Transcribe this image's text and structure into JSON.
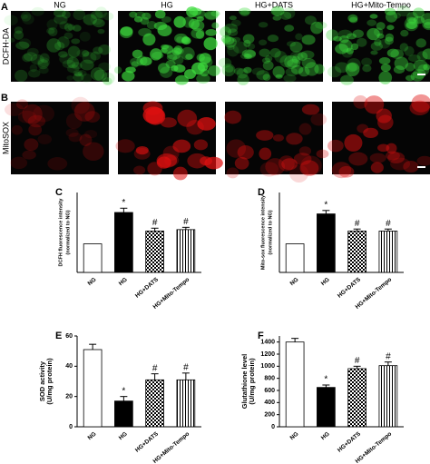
{
  "images": {
    "columns": [
      "NG",
      "HG",
      "HG+DATS",
      "HG+Mito-Tempo"
    ],
    "rows": [
      {
        "panel": "A",
        "stain": "DCFH-DA",
        "color": "#3ddc3d"
      },
      {
        "panel": "B",
        "stain": "MitoSOX",
        "color": "#e01010"
      }
    ]
  },
  "chart_data": [
    {
      "type": "bar",
      "panel": "C",
      "ylabel": [
        "DCFH fluorescence intensity",
        "(normalized to NG)"
      ],
      "categories": [
        "NG",
        "HG",
        "HG+DATS",
        "HG+Mito-Tempo"
      ],
      "values": [
        1,
        2.1,
        1.45,
        1.5
      ],
      "errors": [
        0,
        0.15,
        0.1,
        0.08
      ],
      "annotations": [
        null,
        "*",
        "#",
        "#"
      ],
      "patterns": [
        "white",
        "black",
        "checker",
        "vertical-stripes"
      ],
      "ylim": [
        0,
        2.8
      ]
    },
    {
      "type": "bar",
      "panel": "D",
      "ylabel": [
        "Mito-sox fluorescence intensity",
        "(normalized to NG)"
      ],
      "categories": [
        "NG",
        "HG",
        "HG+DATS",
        "HG+Mito-Tempo"
      ],
      "values": [
        1,
        2.05,
        1.45,
        1.45
      ],
      "errors": [
        0,
        0.12,
        0.07,
        0.07
      ],
      "annotations": [
        null,
        "*",
        "#",
        "#"
      ],
      "patterns": [
        "white",
        "black",
        "checker",
        "vertical-stripes"
      ],
      "ylim": [
        0,
        2.8
      ]
    },
    {
      "type": "bar",
      "panel": "E",
      "ylabel": [
        "SOD activity",
        "(U/mg protein)"
      ],
      "categories": [
        "NG",
        "HG",
        "HG+DATS",
        "HG+Mito-Tempo"
      ],
      "values": [
        51,
        17,
        31,
        31
      ],
      "errors": [
        3.5,
        3,
        4,
        4.5
      ],
      "annotations": [
        null,
        "*",
        "#",
        "#"
      ],
      "patterns": [
        "white",
        "black",
        "checker",
        "vertical-stripes"
      ],
      "ylim": [
        0,
        60
      ],
      "yticks": [
        0,
        20,
        40,
        60
      ]
    },
    {
      "type": "bar",
      "panel": "F",
      "ylabel": [
        "Glutathione level",
        "(U/mg protein)"
      ],
      "categories": [
        "NG",
        "HG",
        "HG+DATS",
        "HG+Mito-Tempo"
      ],
      "values": [
        1400,
        650,
        960,
        1010
      ],
      "errors": [
        60,
        40,
        40,
        60
      ],
      "annotations": [
        null,
        "*",
        "#",
        "#"
      ],
      "patterns": [
        "white",
        "black",
        "checker",
        "vertical-stripes"
      ],
      "ylim": [
        0,
        1500
      ],
      "yticks": [
        0,
        200,
        400,
        600,
        800,
        1000,
        1200,
        1400
      ]
    }
  ]
}
